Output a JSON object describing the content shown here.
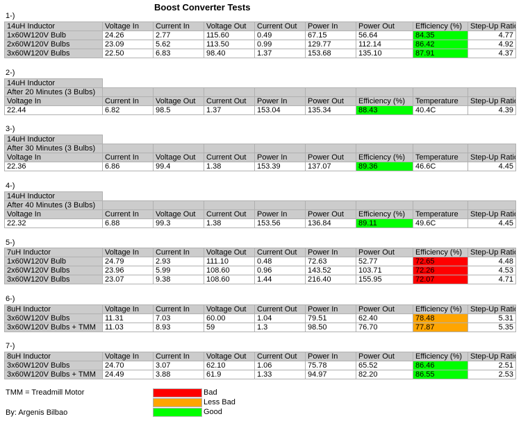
{
  "title": "Boost Converter Tests",
  "colors": {
    "good": "#00ff00",
    "bad": "#ff0000",
    "less_bad": "#ffa500",
    "header": "#cccccc"
  },
  "t1": {
    "label": "1-)",
    "header": [
      "14uH Inductor",
      "Voltage In",
      "Current In",
      "Voltage Out",
      "Current Out",
      "Power In",
      "Power Out",
      "Efficiency (%)",
      "Step-Up Ratio"
    ],
    "rows": [
      {
        "cells": [
          "1x60W120V Bulb",
          "24.26",
          "2.77",
          "115.60",
          "0.49",
          "67.15",
          "56.64",
          "84.35",
          "4.77"
        ],
        "rating": "good"
      },
      {
        "cells": [
          "2x60W120V Bulbs",
          "23.09",
          "5.62",
          "113.50",
          "0.99",
          "129.77",
          "112.14",
          "86.42",
          "4.92"
        ],
        "rating": "good"
      },
      {
        "cells": [
          "3x60W120V Bulbs",
          "22.50",
          "6.83",
          "98.40",
          "1.37",
          "153.68",
          "135.10",
          "87.91",
          "4.37"
        ],
        "rating": "good"
      }
    ]
  },
  "t2": {
    "label": "2-)",
    "line1": "14uH Inductor",
    "line2": "After 20 Minutes (3 Bulbs)",
    "header": [
      "Voltage In",
      "Current In",
      "Voltage Out",
      "Current Out",
      "Power In",
      "Power Out",
      "Efficiency (%)",
      "Temperature",
      "Step-Up Ratio"
    ],
    "row": {
      "cells": [
        "22.44",
        "6.82",
        "98.5",
        "1.37",
        "153.04",
        "135.34",
        "88.43",
        "40.4C",
        "4.39"
      ],
      "rating": "good"
    }
  },
  "t3": {
    "label": "3-)",
    "line1": "14uH Inductor",
    "line2": "After 30 Minutes (3 Bulbs)",
    "header": [
      "Voltage In",
      "Current In",
      "Voltage Out",
      "Current Out",
      "Power In",
      "Power Out",
      "Efficiency (%)",
      "Temperature",
      "Step-Up Ratio"
    ],
    "row": {
      "cells": [
        "22.36",
        "6.86",
        "99.4",
        "1.38",
        "153.39",
        "137.07",
        "89.36",
        "46.6C",
        "4.45"
      ],
      "rating": "good"
    }
  },
  "t4": {
    "label": "4-)",
    "line1": "14uH Inductor",
    "line2": "After 40 Minutes (3 Bulbs)",
    "header": [
      "Voltage In",
      "Current In",
      "Voltage Out",
      "Current Out",
      "Power In",
      "Power Out",
      "Efficiency (%)",
      "Temperature",
      "Step-Up Ratio"
    ],
    "row": {
      "cells": [
        "22.32",
        "6.88",
        "99.3",
        "1.38",
        "153.56",
        "136.84",
        "89.11",
        "49.6C",
        "4.45"
      ],
      "rating": "good"
    }
  },
  "t5": {
    "label": "5-)",
    "header": [
      "7uH Inductor",
      "Voltage In",
      "Current In",
      "Voltage Out",
      "Current Out",
      "Power In",
      "Power Out",
      "Efficiency (%)",
      "Step-Up Ratio"
    ],
    "rows": [
      {
        "cells": [
          "1x60W120V Bulb",
          "24.79",
          "2.93",
          "111.10",
          "0.48",
          "72.63",
          "52.77",
          "72.65",
          "4.48"
        ],
        "rating": "bad"
      },
      {
        "cells": [
          "2x60W120V Bulbs",
          "23.96",
          "5.99",
          "108.60",
          "0.96",
          "143.52",
          "103.71",
          "72.26",
          "4.53"
        ],
        "rating": "bad"
      },
      {
        "cells": [
          "3x60W120V Bulbs",
          "23.07",
          "9.38",
          "108.60",
          "1.44",
          "216.40",
          "155.95",
          "72.07",
          "4.71"
        ],
        "rating": "bad"
      }
    ]
  },
  "t6": {
    "label": "6-)",
    "header": [
      "8uH Inductor",
      "Voltage In",
      "Current In",
      "Voltage Out",
      "Current Out",
      "Power In",
      "Power Out",
      "Efficiency (%)",
      "Step-Up Ratio"
    ],
    "rows": [
      {
        "cells": [
          "3x60W120V Bulbs",
          "11.31",
          "7.03",
          "60.00",
          "1.04",
          "79.51",
          "62.40",
          "78.48",
          "5.31"
        ],
        "rating": "lessbad"
      },
      {
        "cells": [
          "3x60W120V Bulbs + TMM",
          "11.03",
          "8.93",
          "59",
          "1.3",
          "98.50",
          "76.70",
          "77.87",
          "5.35"
        ],
        "rating": "lessbad"
      }
    ]
  },
  "t7": {
    "label": "7-)",
    "header": [
      "8uH Inductor",
      "Voltage In",
      "Current In",
      "Voltage Out",
      "Current Out",
      "Power In",
      "Power Out",
      "Efficiency (%)",
      "Step-Up Ratio"
    ],
    "rows": [
      {
        "cells": [
          "3x60W120V Bulbs",
          "24.70",
          "3.07",
          "62.10",
          "1.06",
          "75.78",
          "65.52",
          "86.46",
          "2.51"
        ],
        "rating": "good"
      },
      {
        "cells": [
          "3x60W120V Bulbs + TMM",
          "24.49",
          "3.88",
          "61.9",
          "1.33",
          "94.97",
          "82.20",
          "86.55",
          "2.53"
        ],
        "rating": "good"
      }
    ]
  },
  "legend": {
    "tmm_note": "TMM = Treadmill Motor",
    "author": "By: Argenis Bilbao",
    "items": [
      {
        "label": "Bad",
        "rating": "bad"
      },
      {
        "label": "Less Bad",
        "rating": "lessbad"
      },
      {
        "label": "Good",
        "rating": "good"
      }
    ]
  }
}
